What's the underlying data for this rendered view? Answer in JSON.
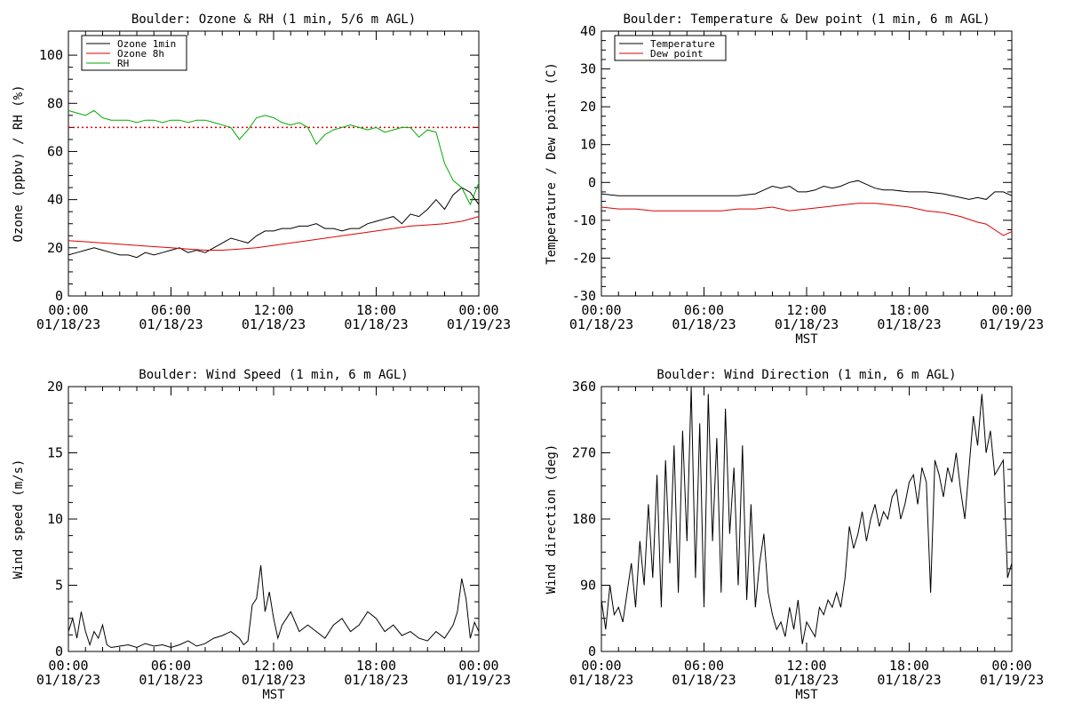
{
  "chart_data": [
    {
      "id": "ozone",
      "type": "line",
      "title": "Boulder: Ozone & RH (1 min, 5/6 m AGL)",
      "xlabel": "",
      "ylabel": "Ozone (ppbv) / RH (%)",
      "ylim": [
        0,
        110
      ],
      "yticks": [
        0,
        20,
        40,
        60,
        80,
        100
      ],
      "xlim": [
        0,
        24
      ],
      "xticks": [
        {
          "time": "00:00",
          "date": "01/18/23"
        },
        {
          "time": "06:00",
          "date": "01/18/23"
        },
        {
          "time": "12:00",
          "date": "01/18/23"
        },
        {
          "time": "18:00",
          "date": "01/18/23"
        },
        {
          "time": "00:00",
          "date": "01/19/23"
        }
      ],
      "legend_placement": "top-left",
      "reference_line": {
        "y": 70,
        "color": "#dd0000",
        "style": "dotted"
      },
      "series": [
        {
          "name": "Ozone 1min",
          "color": "#000000",
          "x": [
            0,
            0.5,
            1,
            1.5,
            2,
            2.5,
            3,
            3.5,
            4,
            4.5,
            5,
            5.5,
            6,
            6.5,
            7,
            7.5,
            8,
            8.5,
            9,
            9.5,
            10,
            10.5,
            11,
            11.5,
            12,
            12.5,
            13,
            13.5,
            14,
            14.5,
            15,
            15.5,
            16,
            16.5,
            17,
            17.5,
            18,
            18.5,
            19,
            19.5,
            20,
            20.5,
            21,
            21.5,
            22,
            22.5,
            23,
            23.5,
            24
          ],
          "y": [
            17,
            18,
            19,
            20,
            19,
            18,
            17,
            17,
            16,
            18,
            17,
            18,
            19,
            20,
            18,
            19,
            18,
            20,
            22,
            24,
            23,
            22,
            25,
            27,
            27,
            28,
            28,
            29,
            29,
            30,
            28,
            28,
            27,
            28,
            28,
            30,
            31,
            32,
            33,
            30,
            34,
            33,
            36,
            40,
            36,
            42,
            45,
            43,
            38
          ]
        },
        {
          "name": "Ozone 8h",
          "color": "#dd0000",
          "x": [
            0,
            1,
            2,
            3,
            4,
            5,
            6,
            7,
            8,
            9,
            10,
            11,
            12,
            13,
            14,
            15,
            16,
            17,
            18,
            19,
            20,
            21,
            22,
            23,
            24
          ],
          "y": [
            23,
            22.5,
            22,
            21.5,
            21,
            20.5,
            20,
            19.5,
            19,
            19,
            19.5,
            20,
            21,
            22,
            23,
            24,
            25,
            26,
            27,
            28,
            29,
            29.5,
            30,
            31,
            33
          ]
        },
        {
          "name": "RH",
          "color": "#00aa00",
          "x": [
            0,
            0.5,
            1,
            1.5,
            2,
            2.5,
            3,
            3.5,
            4,
            4.5,
            5,
            5.5,
            6,
            6.5,
            7,
            7.5,
            8,
            8.5,
            9,
            9.5,
            10,
            10.5,
            11,
            11.5,
            12,
            12.5,
            13,
            13.5,
            14,
            14.5,
            15,
            15.5,
            16,
            16.5,
            17,
            17.5,
            18,
            18.5,
            19,
            19.5,
            20,
            20.5,
            21,
            21.5,
            22,
            22.5,
            23,
            23.5,
            24
          ],
          "y": [
            77,
            76,
            75,
            77,
            74,
            73,
            73,
            73,
            72,
            73,
            73,
            72,
            73,
            73,
            72,
            73,
            73,
            72,
            71,
            70,
            65,
            69,
            74,
            75,
            74,
            72,
            71,
            72,
            70,
            63,
            67,
            69,
            70,
            71,
            70,
            69,
            70,
            68,
            69,
            70,
            70,
            66,
            69,
            68,
            55,
            48,
            45,
            38,
            47
          ]
        }
      ]
    },
    {
      "id": "temp",
      "type": "line",
      "title": "Boulder: Temperature & Dew point (1 min, 6 m AGL)",
      "xlabel": "MST",
      "ylabel": "Temperature / Dew point (C)",
      "ylim": [
        -30,
        40
      ],
      "yticks": [
        -30,
        -20,
        -10,
        0,
        10,
        20,
        30,
        40
      ],
      "xlim": [
        0,
        24
      ],
      "xticks": [
        {
          "time": "00:00",
          "date": "01/18/23"
        },
        {
          "time": "06:00",
          "date": "01/18/23"
        },
        {
          "time": "12:00",
          "date": "01/18/23"
        },
        {
          "time": "18:00",
          "date": "01/18/23"
        },
        {
          "time": "00:00",
          "date": "01/19/23"
        }
      ],
      "legend_placement": "top-left",
      "series": [
        {
          "name": "Temperature",
          "color": "#000000",
          "x": [
            0,
            1,
            2,
            3,
            4,
            5,
            6,
            7,
            8,
            9,
            9.5,
            10,
            10.5,
            11,
            11.5,
            12,
            12.5,
            13,
            13.5,
            14,
            14.5,
            15,
            15.5,
            16,
            16.5,
            17,
            18,
            19,
            20,
            21,
            21.5,
            22,
            22.5,
            23,
            23.5,
            24
          ],
          "y": [
            -3,
            -3.5,
            -3.5,
            -3.5,
            -3.5,
            -3.5,
            -3.5,
            -3.5,
            -3.5,
            -3,
            -2,
            -1,
            -1.5,
            -1,
            -2.5,
            -2.5,
            -2,
            -1,
            -1.5,
            -1,
            0,
            0.5,
            -0.5,
            -1.5,
            -2,
            -2,
            -2.5,
            -2.5,
            -3,
            -4,
            -4.5,
            -4,
            -4.5,
            -2.5,
            -2.5,
            -3.5
          ]
        },
        {
          "name": "Dew point",
          "color": "#dd0000",
          "x": [
            0,
            1,
            2,
            3,
            4,
            5,
            6,
            7,
            8,
            9,
            10,
            11,
            12,
            13,
            14,
            15,
            16,
            17,
            18,
            19,
            20,
            21,
            22,
            22.5,
            23,
            23.5,
            24
          ],
          "y": [
            -6.5,
            -7,
            -7,
            -7.5,
            -7.5,
            -7.5,
            -7.5,
            -7.5,
            -7,
            -7,
            -6.5,
            -7.5,
            -7,
            -6.5,
            -6,
            -5.5,
            -5.5,
            -6,
            -6.5,
            -7.5,
            -8,
            -9,
            -10.5,
            -11,
            -12.5,
            -14,
            -13
          ]
        }
      ]
    },
    {
      "id": "wspd",
      "type": "line",
      "title": "Boulder: Wind Speed (1 min, 6 m AGL)",
      "xlabel": "MST",
      "ylabel": "Wind speed (m/s)",
      "ylim": [
        0,
        20
      ],
      "yticks": [
        0,
        5,
        10,
        15,
        20
      ],
      "xlim": [
        0,
        24
      ],
      "xticks": [
        {
          "time": "00:00",
          "date": "01/18/23"
        },
        {
          "time": "06:00",
          "date": "01/18/23"
        },
        {
          "time": "12:00",
          "date": "01/18/23"
        },
        {
          "time": "18:00",
          "date": "01/18/23"
        },
        {
          "time": "00:00",
          "date": "01/19/23"
        }
      ],
      "series": [
        {
          "color": "#000000",
          "x": [
            0,
            0.25,
            0.5,
            0.75,
            1,
            1.25,
            1.5,
            1.75,
            2,
            2.25,
            2.5,
            3,
            3.5,
            4,
            4.5,
            5,
            5.5,
            6,
            6.5,
            7,
            7.5,
            8,
            8.5,
            9,
            9.5,
            10,
            10.25,
            10.5,
            10.75,
            11,
            11.25,
            11.5,
            11.75,
            12,
            12.25,
            12.5,
            13,
            13.5,
            14,
            14.5,
            15,
            15.5,
            16,
            16.5,
            17,
            17.5,
            18,
            18.5,
            19,
            19.5,
            20,
            20.5,
            21,
            21.5,
            22,
            22.5,
            22.75,
            23,
            23.25,
            23.5,
            23.75,
            24
          ],
          "y": [
            1.5,
            2.5,
            1,
            3,
            1.5,
            0.5,
            1.5,
            1,
            2,
            0.5,
            0.3,
            0.4,
            0.5,
            0.3,
            0.6,
            0.4,
            0.5,
            0.3,
            0.5,
            0.8,
            0.4,
            0.6,
            1,
            1.2,
            1.5,
            1,
            0.5,
            0.8,
            3.5,
            4,
            6.5,
            3,
            4.5,
            2.5,
            1,
            2,
            3,
            1.5,
            2,
            1.5,
            1,
            2,
            2.5,
            1.5,
            2,
            3,
            2.5,
            1.5,
            2,
            1.2,
            1.5,
            1,
            0.8,
            1.5,
            1,
            2,
            3,
            5.5,
            4,
            1,
            2.2,
            1.5
          ]
        }
      ]
    },
    {
      "id": "wdir",
      "type": "line",
      "title": "Boulder: Wind Direction (1 min, 6 m AGL)",
      "xlabel": "MST",
      "ylabel": "Wind direction (deg)",
      "ylim": [
        0,
        360
      ],
      "yticks": [
        0,
        90,
        180,
        270,
        360
      ],
      "xlim": [
        0,
        24
      ],
      "xticks": [
        {
          "time": "00:00",
          "date": "01/18/23"
        },
        {
          "time": "06:00",
          "date": "01/18/23"
        },
        {
          "time": "12:00",
          "date": "01/18/23"
        },
        {
          "time": "18:00",
          "date": "01/18/23"
        },
        {
          "time": "00:00",
          "date": "01/19/23"
        }
      ],
      "series": [
        {
          "color": "#000000",
          "x": [
            0,
            0.25,
            0.5,
            0.75,
            1,
            1.25,
            1.5,
            1.75,
            2,
            2.25,
            2.5,
            2.75,
            3,
            3.25,
            3.5,
            3.75,
            4,
            4.25,
            4.5,
            4.75,
            5,
            5.25,
            5.5,
            5.75,
            6,
            6.25,
            6.5,
            6.75,
            7,
            7.25,
            7.5,
            7.75,
            8,
            8.25,
            8.5,
            8.75,
            9,
            9.25,
            9.5,
            9.75,
            10,
            10.25,
            10.5,
            10.75,
            11,
            11.25,
            11.5,
            11.75,
            12,
            12.25,
            12.5,
            12.75,
            13,
            13.25,
            13.5,
            13.75,
            14,
            14.25,
            14.5,
            14.75,
            15,
            15.25,
            15.5,
            15.75,
            16,
            16.25,
            16.5,
            16.75,
            17,
            17.25,
            17.5,
            17.75,
            18,
            18.25,
            18.5,
            18.75,
            19,
            19.25,
            19.5,
            19.75,
            20,
            20.25,
            20.5,
            20.75,
            21,
            21.25,
            21.5,
            21.75,
            22,
            22.25,
            22.5,
            22.75,
            23,
            23.25,
            23.5,
            23.75,
            24
          ],
          "y": [
            70,
            30,
            90,
            50,
            60,
            40,
            80,
            120,
            60,
            150,
            90,
            200,
            100,
            240,
            60,
            260,
            120,
            280,
            80,
            300,
            150,
            360,
            100,
            310,
            60,
            350,
            150,
            290,
            80,
            330,
            160,
            250,
            90,
            280,
            70,
            200,
            60,
            120,
            160,
            80,
            50,
            30,
            40,
            20,
            60,
            30,
            70,
            10,
            40,
            30,
            20,
            60,
            50,
            70,
            60,
            80,
            60,
            100,
            170,
            140,
            160,
            190,
            150,
            180,
            200,
            170,
            190,
            180,
            210,
            220,
            180,
            200,
            230,
            240,
            200,
            250,
            230,
            80,
            260,
            240,
            210,
            250,
            230,
            270,
            220,
            180,
            250,
            320,
            280,
            350,
            270,
            300,
            240,
            250,
            260,
            100,
            120
          ]
        }
      ]
    }
  ]
}
